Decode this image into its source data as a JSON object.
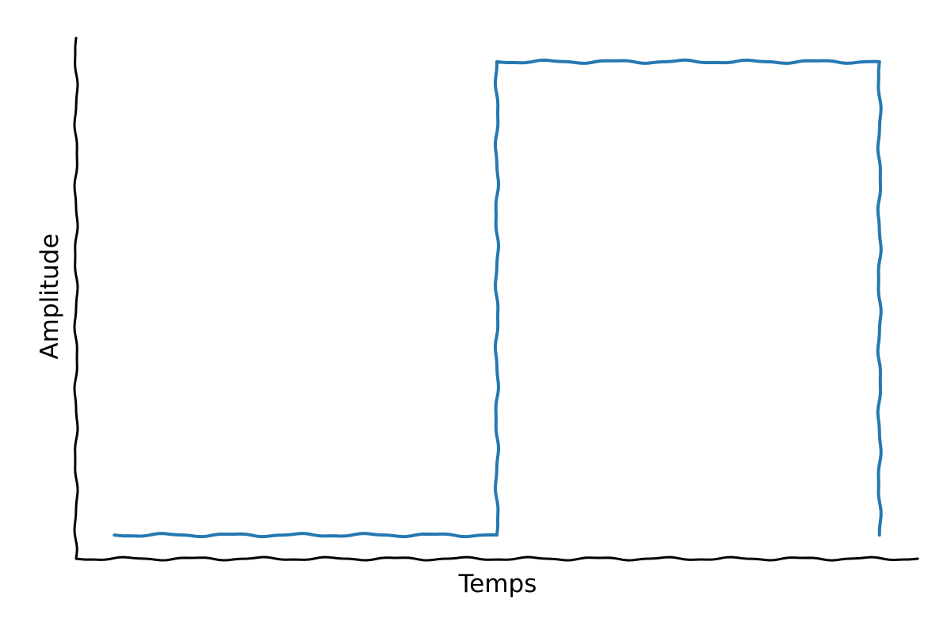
{
  "chart_data": {
    "type": "line",
    "title": "",
    "xlabel": "Temps",
    "ylabel": "Amplitude",
    "x_ticks": [],
    "y_ticks": [],
    "grid": false,
    "series": [
      {
        "color": "#2678b2",
        "x": [
          0,
          5,
          5,
          10,
          10
        ],
        "y": [
          0,
          0,
          1,
          1,
          0
        ]
      }
    ],
    "xlim": [
      -0.5,
      10.5
    ],
    "ylim": [
      -0.05,
      1.05
    ]
  }
}
